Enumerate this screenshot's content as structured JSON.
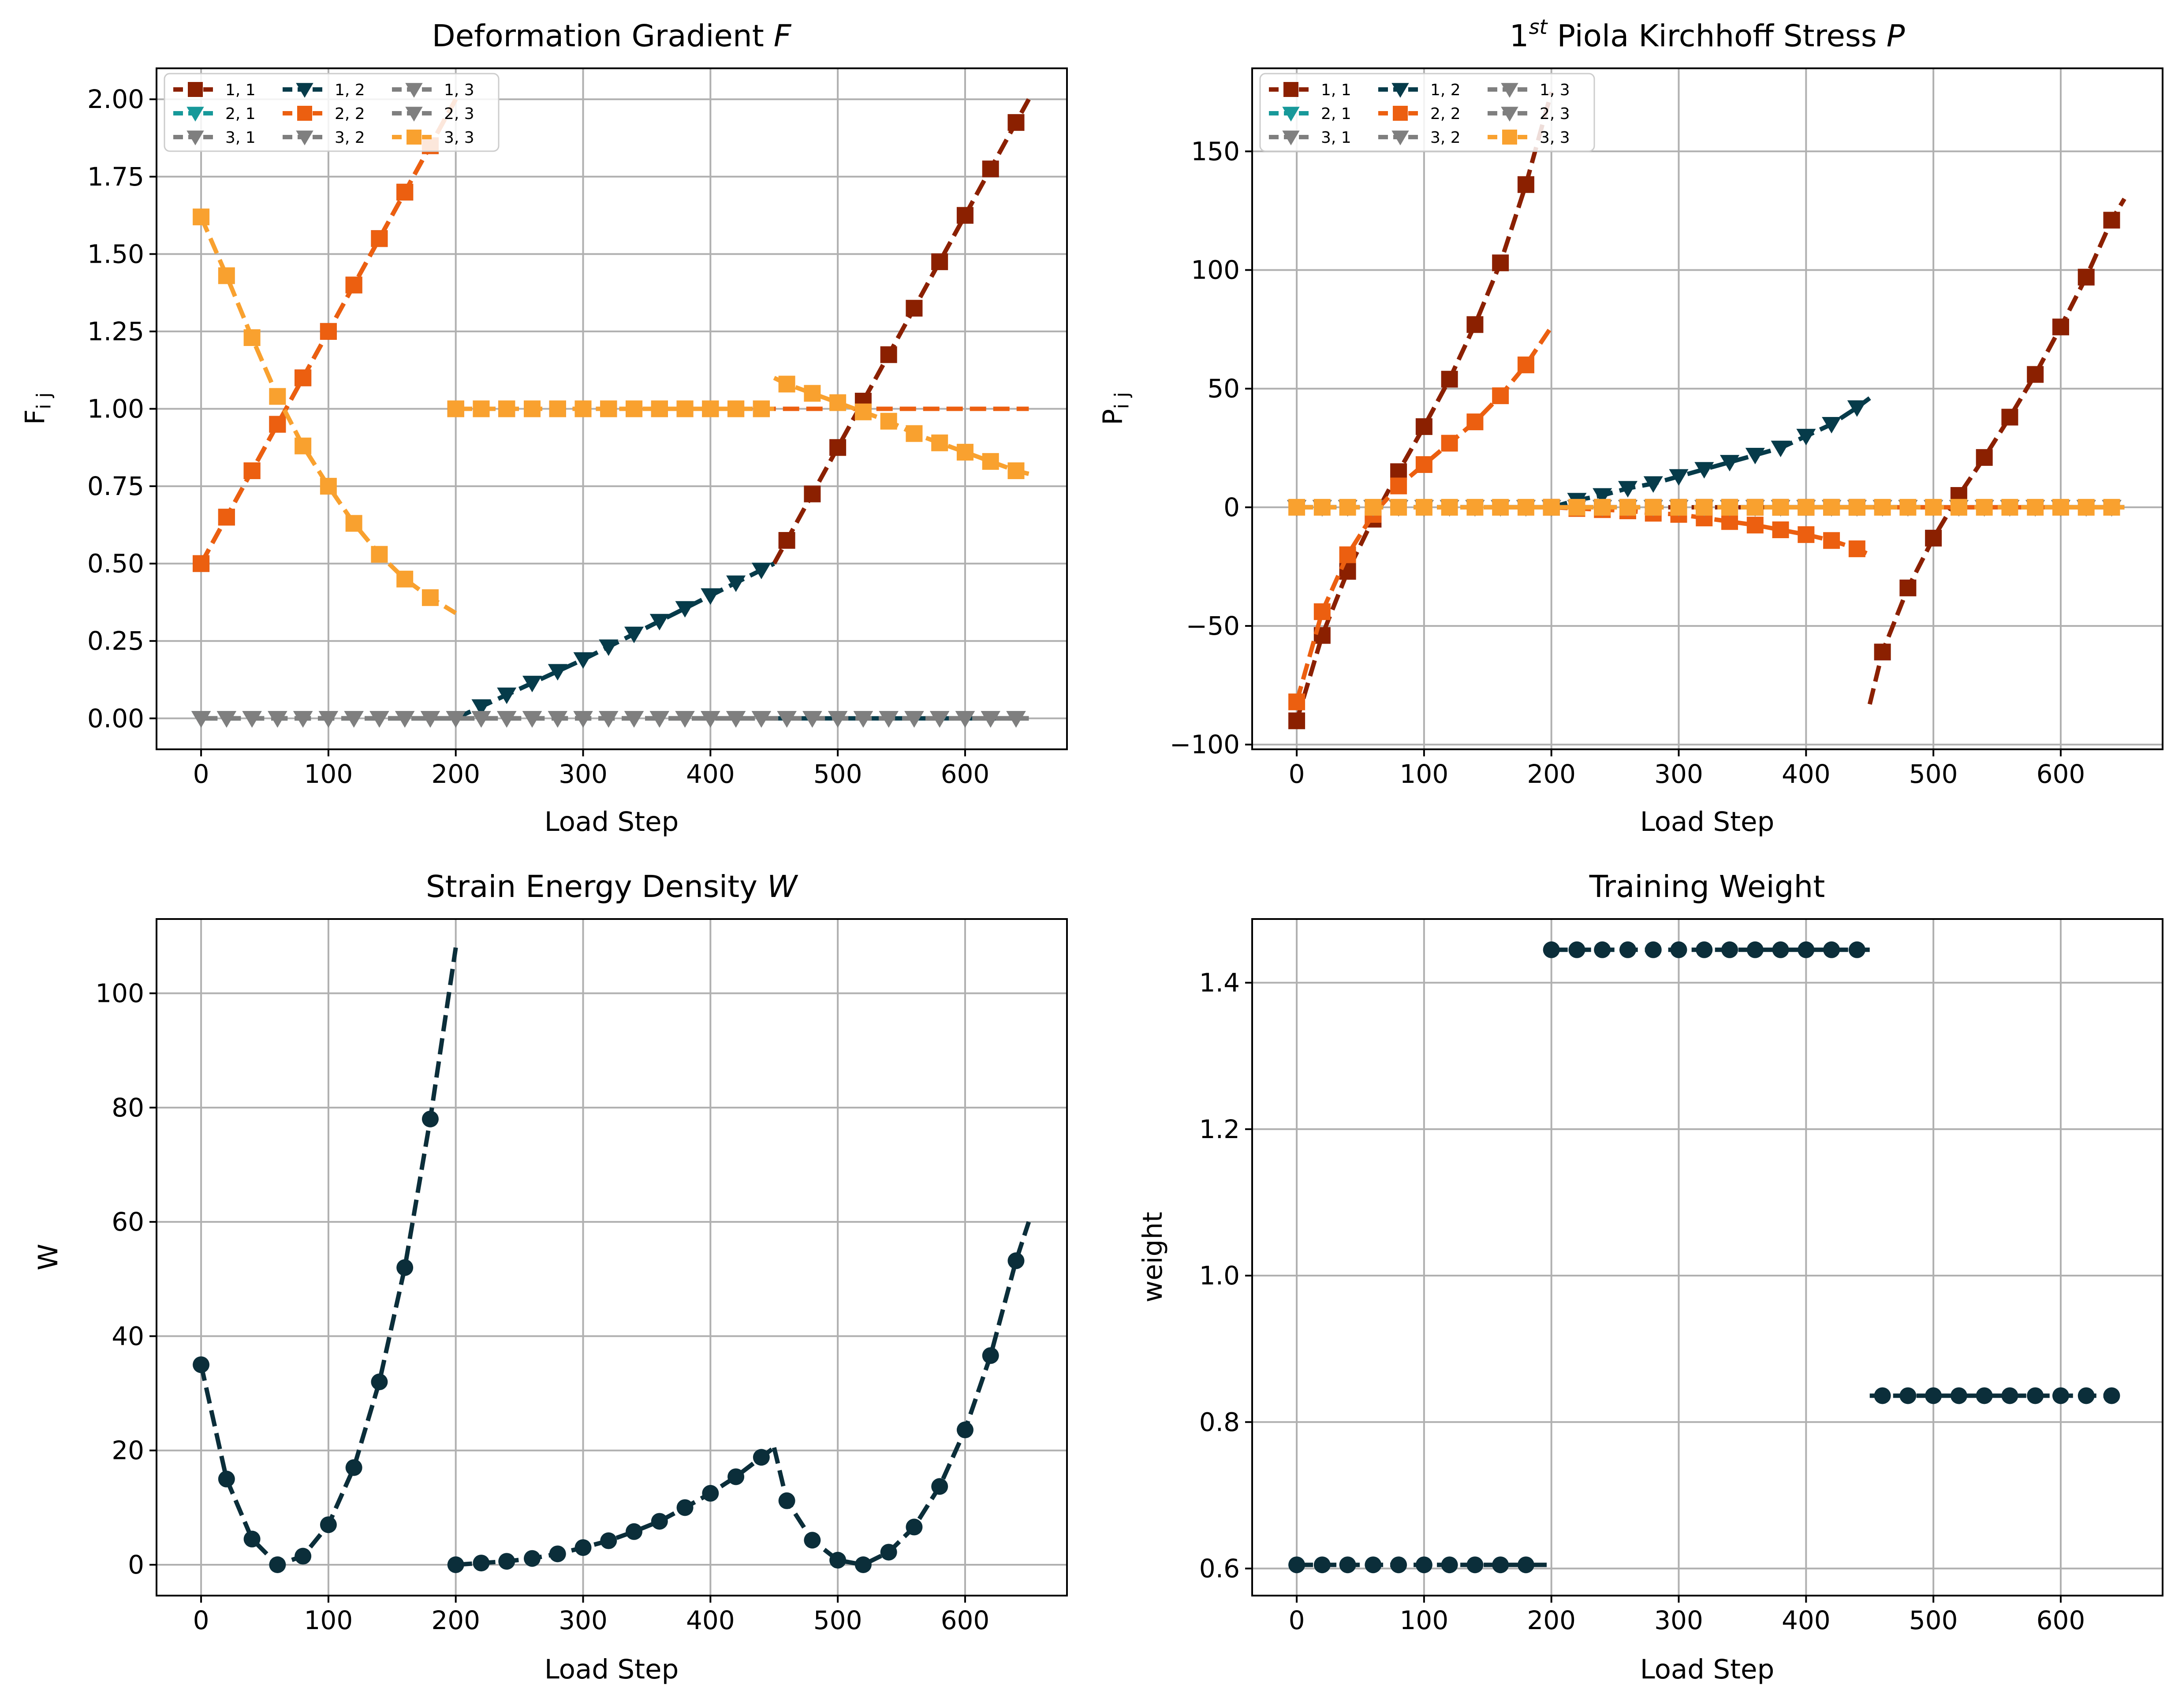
{
  "figure": {
    "background": "#ffffff"
  },
  "colors": {
    "dark_red": "#8B2000",
    "teal": "#17999A",
    "grey": "#7F7F7F",
    "navy": "#063B4A",
    "orange": "#EC5F10",
    "light_orange": "#F9A12F",
    "navy_dark": "#0B2E3A"
  },
  "chart_data": [
    {
      "id": "F",
      "type": "line",
      "title": "Deformation Gradient",
      "title_symbol": "F",
      "xlabel": "Load Step",
      "ylabel_base": "F",
      "ylabel_sub": "i j",
      "xlim": [
        -35,
        680
      ],
      "ylim": [
        -0.1,
        2.1
      ],
      "xticks": [
        0,
        100,
        200,
        300,
        400,
        500,
        600
      ],
      "xtick_labels": [
        "0",
        "100",
        "200",
        "300",
        "400",
        "500",
        "600"
      ],
      "yticks": [
        0.0,
        0.25,
        0.5,
        0.75,
        1.0,
        1.25,
        1.5,
        1.75,
        2.0
      ],
      "ytick_labels": [
        "0.00",
        "0.25",
        "0.50",
        "0.75",
        "1.00",
        "1.25",
        "1.50",
        "1.75",
        "2.00"
      ],
      "grid": true,
      "legend": {
        "position": "top-left",
        "columns": 3
      },
      "series": [
        {
          "name": "1, 1",
          "color": "#8B2000",
          "marker": "square",
          "segments": [
            {
              "x": [
                0,
                200
              ],
              "y": [
                0.5,
                2.0
              ],
              "marker": "square"
            },
            {
              "x": [
                200,
                450
              ],
              "y": [
                1.0,
                1.0
              ],
              "marker": "square"
            },
            {
              "x": [
                450,
                650
              ],
              "y": [
                0.5,
                2.0
              ],
              "marker": "square"
            }
          ]
        },
        {
          "name": "2, 1",
          "color": "#17999A",
          "marker": "triangle-down",
          "segments": [
            {
              "x": [
                0,
                650
              ],
              "y": [
                0,
                0
              ],
              "marker": "triangle-down"
            }
          ]
        },
        {
          "name": "3, 1",
          "color": "#7F7F7F",
          "marker": "triangle-down",
          "segments": [
            {
              "x": [
                0,
                650
              ],
              "y": [
                0,
                0
              ],
              "marker": "triangle-down"
            }
          ]
        },
        {
          "name": "1, 2",
          "color": "#063B4A",
          "marker": "triangle-down",
          "segments": [
            {
              "x": [
                0,
                200
              ],
              "y": [
                0,
                0
              ],
              "marker": "none"
            },
            {
              "x": [
                200,
                300,
                450
              ],
              "y": [
                0.0,
                0.19,
                0.5
              ],
              "marker": "triangle-down"
            },
            {
              "x": [
                450,
                650
              ],
              "y": [
                0,
                0
              ],
              "marker": "none"
            }
          ]
        },
        {
          "name": "2, 2",
          "color": "#EC5F10",
          "marker": "square",
          "segments": [
            {
              "x": [
                0,
                100,
                200
              ],
              "y": [
                0.5,
                1.25,
                2.0
              ],
              "marker": "square"
            },
            {
              "x": [
                200,
                650
              ],
              "y": [
                1.0,
                1.0
              ],
              "marker": "none"
            }
          ]
        },
        {
          "name": "3, 2",
          "color": "#7F7F7F",
          "marker": "triangle-down",
          "segments": [
            {
              "x": [
                0,
                650
              ],
              "y": [
                0,
                0
              ],
              "marker": "triangle-down"
            }
          ]
        },
        {
          "name": "1, 3",
          "color": "#7F7F7F",
          "marker": "triangle-down",
          "segments": [
            {
              "x": [
                0,
                650
              ],
              "y": [
                0,
                0
              ],
              "marker": "triangle-down"
            }
          ]
        },
        {
          "name": "2, 3",
          "color": "#7F7F7F",
          "marker": "triangle-down",
          "segments": [
            {
              "x": [
                0,
                650
              ],
              "y": [
                0,
                0
              ],
              "marker": "triangle-down"
            }
          ]
        },
        {
          "name": "3, 3",
          "color": "#F9A12F",
          "marker": "square",
          "segments": [
            {
              "x": [
                0,
                20,
                40,
                60,
                80,
                100,
                120,
                140,
                160,
                180,
                200
              ],
              "y": [
                1.62,
                1.43,
                1.23,
                1.04,
                0.88,
                0.75,
                0.63,
                0.53,
                0.45,
                0.39,
                0.34
              ],
              "marker": "square"
            },
            {
              "x": [
                200,
                450
              ],
              "y": [
                1.0,
                1.0
              ],
              "marker": "square"
            },
            {
              "x": [
                450,
                460,
                480,
                500,
                520,
                540,
                560,
                580,
                600,
                620,
                640,
                650
              ],
              "y": [
                1.1,
                1.08,
                1.05,
                1.02,
                0.99,
                0.96,
                0.92,
                0.89,
                0.86,
                0.83,
                0.8,
                0.79
              ],
              "marker": "square"
            }
          ]
        }
      ]
    },
    {
      "id": "P",
      "type": "line",
      "title_pre": "1",
      "title_sup": "st",
      "title_mid": " Piola Kirchhoff Stress ",
      "title_symbol": "P",
      "xlabel": "Load Step",
      "ylabel_base": "P",
      "ylabel_sub": "i j",
      "xlim": [
        -35,
        680
      ],
      "ylim": [
        -102,
        185
      ],
      "xticks": [
        0,
        100,
        200,
        300,
        400,
        500,
        600
      ],
      "xtick_labels": [
        "0",
        "100",
        "200",
        "300",
        "400",
        "500",
        "600"
      ],
      "yticks": [
        -100,
        -50,
        0,
        50,
        100,
        150
      ],
      "ytick_labels": [
        "−100",
        "−50",
        "0",
        "50",
        "100",
        "150"
      ],
      "grid": true,
      "legend": {
        "position": "top-left",
        "columns": 3
      },
      "series": [
        {
          "name": "1, 1",
          "color": "#8B2000",
          "marker": "square",
          "segments": [
            {
              "x": [
                0,
                20,
                40,
                60,
                80,
                100,
                120,
                140,
                160,
                180,
                200
              ],
              "y": [
                -90,
                -54,
                -27,
                -5,
                15,
                34,
                54,
                77,
                103,
                136,
                175
              ],
              "marker": "square"
            },
            {
              "x": [
                200,
                450
              ],
              "y": [
                0,
                0
              ],
              "marker": "square"
            },
            {
              "x": [
                450,
                460,
                480,
                500,
                520,
                540,
                560,
                580,
                600,
                620,
                640,
                650
              ],
              "y": [
                -83,
                -61,
                -34,
                -13,
                5,
                21,
                38,
                56,
                76,
                97,
                121,
                130
              ],
              "marker": "square"
            }
          ]
        },
        {
          "name": "2, 1",
          "color": "#17999A",
          "marker": "triangle-down",
          "segments": [
            {
              "x": [
                0,
                650
              ],
              "y": [
                0,
                0
              ],
              "marker": "triangle-down"
            }
          ]
        },
        {
          "name": "3, 1",
          "color": "#7F7F7F",
          "marker": "triangle-down",
          "segments": [
            {
              "x": [
                0,
                650
              ],
              "y": [
                0,
                0
              ],
              "marker": "triangle-down"
            }
          ]
        },
        {
          "name": "1, 2",
          "color": "#063B4A",
          "marker": "triangle-down",
          "segments": [
            {
              "x": [
                0,
                200
              ],
              "y": [
                0,
                0
              ],
              "marker": "none"
            },
            {
              "x": [
                200,
                220,
                240,
                260,
                280,
                300,
                320,
                340,
                360,
                380,
                400,
                420,
                440,
                450
              ],
              "y": [
                0,
                3,
                5,
                8,
                10,
                13,
                16,
                19,
                22,
                25,
                30,
                35,
                42,
                46
              ],
              "marker": "triangle-down"
            },
            {
              "x": [
                450,
                650
              ],
              "y": [
                0,
                0
              ],
              "marker": "none"
            }
          ]
        },
        {
          "name": "2, 2",
          "color": "#EC5F10",
          "marker": "square",
          "segments": [
            {
              "x": [
                0,
                20,
                40,
                60,
                80,
                100,
                120,
                140,
                160,
                180,
                200
              ],
              "y": [
                -82,
                -44,
                -20,
                -3,
                9,
                18,
                27,
                36,
                47,
                60,
                76
              ],
              "marker": "square"
            },
            {
              "x": [
                200,
                220,
                240,
                260,
                280,
                300,
                320,
                340,
                360,
                380,
                400,
                420,
                440,
                450
              ],
              "y": [
                0,
                -0.5,
                -1,
                -1.5,
                -2.5,
                -3,
                -4.5,
                -6,
                -7.5,
                -9.5,
                -11.5,
                -14,
                -17.5,
                -20
              ],
              "marker": "square"
            },
            {
              "x": [
                450,
                650
              ],
              "y": [
                0,
                0
              ],
              "marker": "none"
            }
          ]
        },
        {
          "name": "3, 2",
          "color": "#7F7F7F",
          "marker": "triangle-down",
          "segments": [
            {
              "x": [
                0,
                650
              ],
              "y": [
                0,
                0
              ],
              "marker": "triangle-down"
            }
          ]
        },
        {
          "name": "1, 3",
          "color": "#7F7F7F",
          "marker": "triangle-down",
          "segments": [
            {
              "x": [
                0,
                650
              ],
              "y": [
                0,
                0
              ],
              "marker": "triangle-down"
            }
          ]
        },
        {
          "name": "2, 3",
          "color": "#7F7F7F",
          "marker": "triangle-down",
          "segments": [
            {
              "x": [
                0,
                650
              ],
              "y": [
                0,
                0
              ],
              "marker": "triangle-down"
            }
          ]
        },
        {
          "name": "3, 3",
          "color": "#F9A12F",
          "marker": "square",
          "segments": [
            {
              "x": [
                0,
                650
              ],
              "y": [
                0,
                0
              ],
              "marker": "square"
            }
          ]
        }
      ]
    },
    {
      "id": "W",
      "type": "line",
      "title": "Strain Energy Density",
      "title_symbol": "W",
      "xlabel": "Load Step",
      "ylabel_base": "W",
      "ylabel_sub": "",
      "xlim": [
        -35,
        680
      ],
      "ylim": [
        -5.4,
        113
      ],
      "xticks": [
        0,
        100,
        200,
        300,
        400,
        500,
        600
      ],
      "xtick_labels": [
        "0",
        "100",
        "200",
        "300",
        "400",
        "500",
        "600"
      ],
      "yticks": [
        0,
        20,
        40,
        60,
        80,
        100
      ],
      "ytick_labels": [
        "0",
        "20",
        "40",
        "60",
        "80",
        "100"
      ],
      "grid": true,
      "legend": null,
      "series": [
        {
          "name": "",
          "color": "#0B2E3A",
          "marker": "circle",
          "segments": [
            {
              "x": [
                0,
                20,
                40,
                60,
                80,
                100,
                120,
                140,
                160,
                180,
                200
              ],
              "y": [
                35,
                15,
                4.5,
                0,
                1.5,
                7,
                17,
                32,
                52,
                78,
                108
              ],
              "marker": "circle"
            },
            {
              "x": [
                200,
                220,
                240,
                260,
                280,
                300,
                320,
                340,
                360,
                380,
                400,
                420,
                440,
                450
              ],
              "y": [
                0,
                0.3,
                0.6,
                1.1,
                1.9,
                3,
                4.2,
                5.8,
                7.6,
                10,
                12.5,
                15.4,
                18.8,
                20.5
              ],
              "marker": "circle"
            },
            {
              "x": [
                450,
                460,
                480,
                500,
                520,
                540,
                560,
                580,
                600,
                620,
                640,
                650
              ],
              "y": [
                20.5,
                11.2,
                4.3,
                0.8,
                0,
                2.2,
                6.6,
                13.7,
                23.6,
                36.6,
                53.2,
                60
              ],
              "marker": "circle"
            }
          ]
        }
      ]
    },
    {
      "id": "weight",
      "type": "line",
      "title": "Training Weight",
      "xlabel": "Load Step",
      "ylabel_base": "weight",
      "ylabel_sub": "",
      "xlim": [
        -35,
        680
      ],
      "ylim": [
        0.563,
        1.487
      ],
      "xticks": [
        0,
        100,
        200,
        300,
        400,
        500,
        600
      ],
      "xtick_labels": [
        "0",
        "100",
        "200",
        "300",
        "400",
        "500",
        "600"
      ],
      "yticks": [
        0.6,
        0.8,
        1.0,
        1.2,
        1.4
      ],
      "ytick_labels": [
        "0.6",
        "0.8",
        "1.0",
        "1.2",
        "1.4"
      ],
      "grid": true,
      "legend": null,
      "series": [
        {
          "name": "",
          "color": "#0B2E3A",
          "marker": "circle",
          "segments": [
            {
              "x": [
                0,
                200
              ],
              "y": [
                0.605,
                0.605
              ],
              "marker": "circle"
            },
            {
              "x": [
                200,
                450
              ],
              "y": [
                1.445,
                1.445
              ],
              "marker": "circle"
            },
            {
              "x": [
                450,
                650
              ],
              "y": [
                0.836,
                0.836
              ],
              "marker": "circle"
            }
          ]
        }
      ]
    }
  ]
}
